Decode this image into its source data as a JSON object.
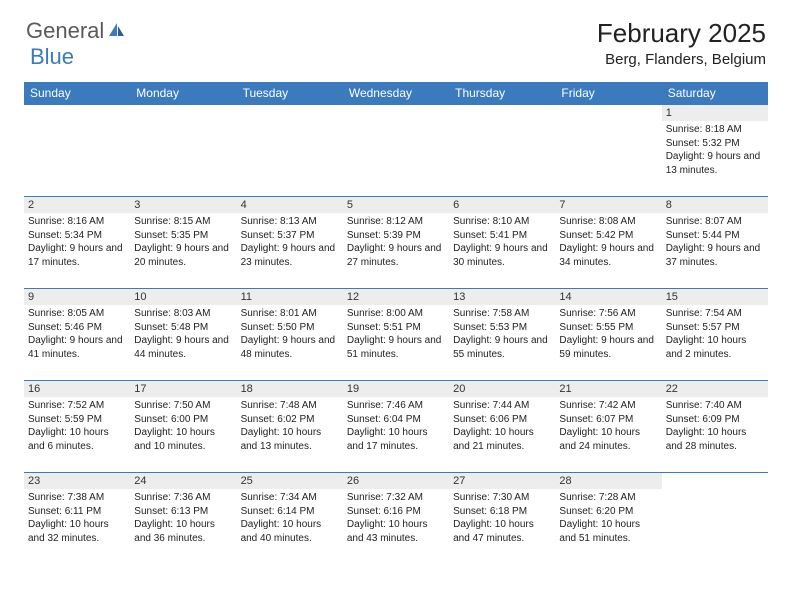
{
  "brand": {
    "word1": "General",
    "word2": "Blue",
    "word1_color": "#5a5a5a",
    "word2_color": "#3a7abd",
    "icon_color": "#3a7abd"
  },
  "title": "February 2025",
  "location": "Berg, Flanders, Belgium",
  "colors": {
    "header_bg": "#3a7abd",
    "header_text": "#ffffff",
    "daynum_bg": "#ededed",
    "border": "#3a7abd",
    "text": "#222222",
    "background": "#ffffff"
  },
  "fonts": {
    "title_size": 26,
    "location_size": 15,
    "weekday_size": 12,
    "daynum_size": 11,
    "content_size": 10
  },
  "weekdays": [
    "Sunday",
    "Monday",
    "Tuesday",
    "Wednesday",
    "Thursday",
    "Friday",
    "Saturday"
  ],
  "weeks": [
    [
      null,
      null,
      null,
      null,
      null,
      null,
      {
        "n": "1",
        "sunrise": "8:18 AM",
        "sunset": "5:32 PM",
        "daylight": "9 hours and 13 minutes."
      }
    ],
    [
      {
        "n": "2",
        "sunrise": "8:16 AM",
        "sunset": "5:34 PM",
        "daylight": "9 hours and 17 minutes."
      },
      {
        "n": "3",
        "sunrise": "8:15 AM",
        "sunset": "5:35 PM",
        "daylight": "9 hours and 20 minutes."
      },
      {
        "n": "4",
        "sunrise": "8:13 AM",
        "sunset": "5:37 PM",
        "daylight": "9 hours and 23 minutes."
      },
      {
        "n": "5",
        "sunrise": "8:12 AM",
        "sunset": "5:39 PM",
        "daylight": "9 hours and 27 minutes."
      },
      {
        "n": "6",
        "sunrise": "8:10 AM",
        "sunset": "5:41 PM",
        "daylight": "9 hours and 30 minutes."
      },
      {
        "n": "7",
        "sunrise": "8:08 AM",
        "sunset": "5:42 PM",
        "daylight": "9 hours and 34 minutes."
      },
      {
        "n": "8",
        "sunrise": "8:07 AM",
        "sunset": "5:44 PM",
        "daylight": "9 hours and 37 minutes."
      }
    ],
    [
      {
        "n": "9",
        "sunrise": "8:05 AM",
        "sunset": "5:46 PM",
        "daylight": "9 hours and 41 minutes."
      },
      {
        "n": "10",
        "sunrise": "8:03 AM",
        "sunset": "5:48 PM",
        "daylight": "9 hours and 44 minutes."
      },
      {
        "n": "11",
        "sunrise": "8:01 AM",
        "sunset": "5:50 PM",
        "daylight": "9 hours and 48 minutes."
      },
      {
        "n": "12",
        "sunrise": "8:00 AM",
        "sunset": "5:51 PM",
        "daylight": "9 hours and 51 minutes."
      },
      {
        "n": "13",
        "sunrise": "7:58 AM",
        "sunset": "5:53 PM",
        "daylight": "9 hours and 55 minutes."
      },
      {
        "n": "14",
        "sunrise": "7:56 AM",
        "sunset": "5:55 PM",
        "daylight": "9 hours and 59 minutes."
      },
      {
        "n": "15",
        "sunrise": "7:54 AM",
        "sunset": "5:57 PM",
        "daylight": "10 hours and 2 minutes."
      }
    ],
    [
      {
        "n": "16",
        "sunrise": "7:52 AM",
        "sunset": "5:59 PM",
        "daylight": "10 hours and 6 minutes."
      },
      {
        "n": "17",
        "sunrise": "7:50 AM",
        "sunset": "6:00 PM",
        "daylight": "10 hours and 10 minutes."
      },
      {
        "n": "18",
        "sunrise": "7:48 AM",
        "sunset": "6:02 PM",
        "daylight": "10 hours and 13 minutes."
      },
      {
        "n": "19",
        "sunrise": "7:46 AM",
        "sunset": "6:04 PM",
        "daylight": "10 hours and 17 minutes."
      },
      {
        "n": "20",
        "sunrise": "7:44 AM",
        "sunset": "6:06 PM",
        "daylight": "10 hours and 21 minutes."
      },
      {
        "n": "21",
        "sunrise": "7:42 AM",
        "sunset": "6:07 PM",
        "daylight": "10 hours and 24 minutes."
      },
      {
        "n": "22",
        "sunrise": "7:40 AM",
        "sunset": "6:09 PM",
        "daylight": "10 hours and 28 minutes."
      }
    ],
    [
      {
        "n": "23",
        "sunrise": "7:38 AM",
        "sunset": "6:11 PM",
        "daylight": "10 hours and 32 minutes."
      },
      {
        "n": "24",
        "sunrise": "7:36 AM",
        "sunset": "6:13 PM",
        "daylight": "10 hours and 36 minutes."
      },
      {
        "n": "25",
        "sunrise": "7:34 AM",
        "sunset": "6:14 PM",
        "daylight": "10 hours and 40 minutes."
      },
      {
        "n": "26",
        "sunrise": "7:32 AM",
        "sunset": "6:16 PM",
        "daylight": "10 hours and 43 minutes."
      },
      {
        "n": "27",
        "sunrise": "7:30 AM",
        "sunset": "6:18 PM",
        "daylight": "10 hours and 47 minutes."
      },
      {
        "n": "28",
        "sunrise": "7:28 AM",
        "sunset": "6:20 PM",
        "daylight": "10 hours and 51 minutes."
      },
      null
    ]
  ],
  "labels": {
    "sunrise": "Sunrise:",
    "sunset": "Sunset:",
    "daylight": "Daylight:"
  }
}
